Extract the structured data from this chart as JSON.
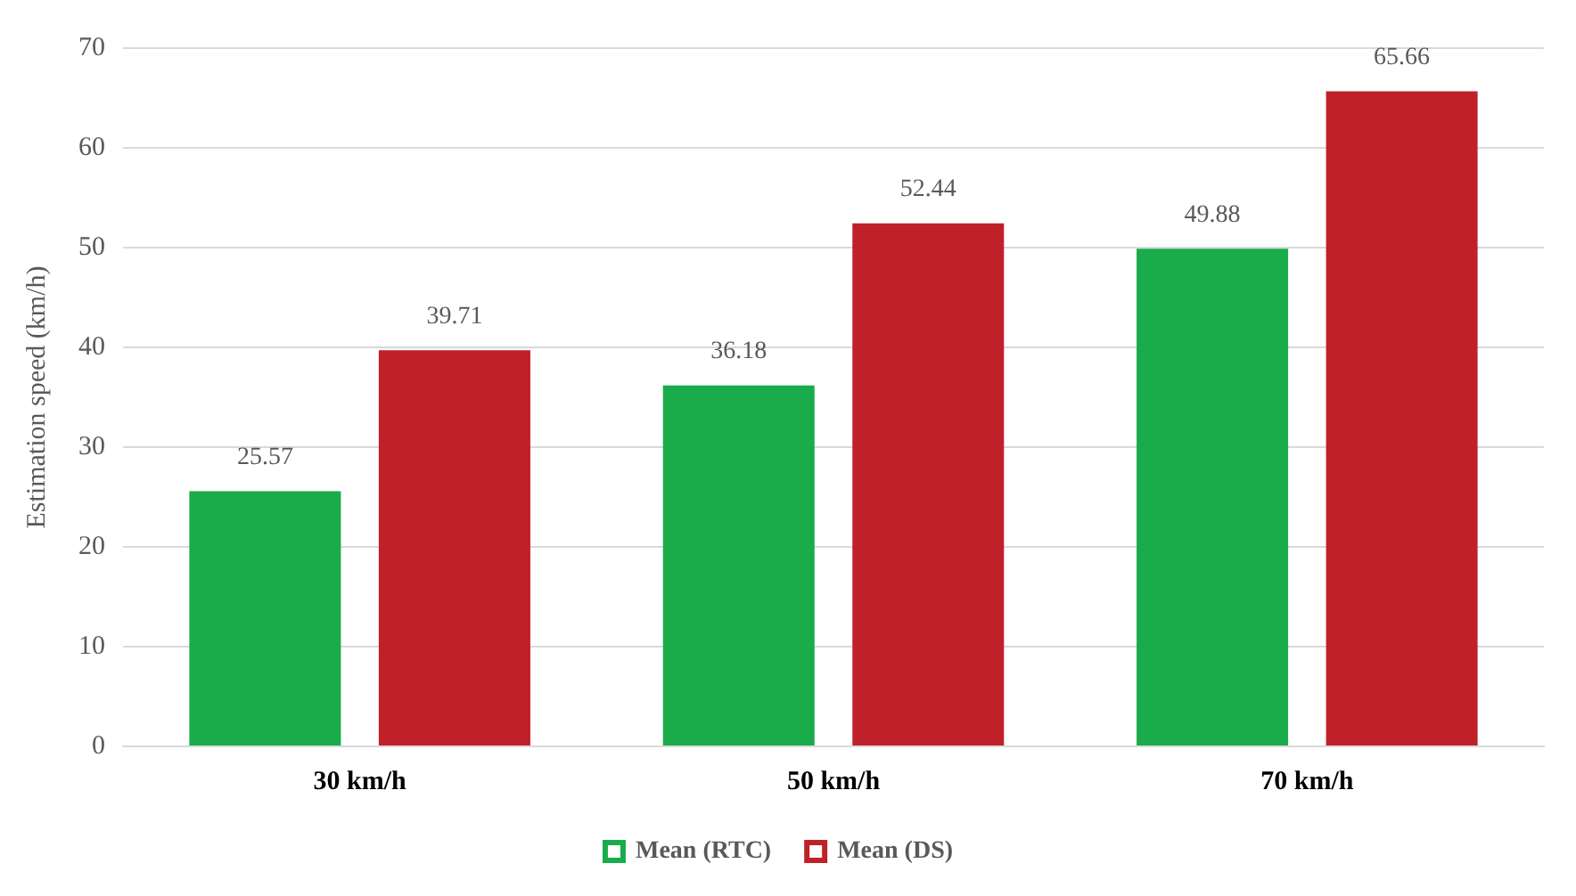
{
  "chart_data": {
    "type": "bar",
    "ylabel": "Estimation speed (km/h)",
    "categories": [
      "30 km/h",
      "50 km/h",
      "70 km/h"
    ],
    "series": [
      {
        "name": "Mean (RTC)",
        "color": "#1aab4b",
        "values": [
          25.57,
          36.18,
          49.88
        ]
      },
      {
        "name": "Mean (DS)",
        "color": "#c0202a",
        "values": [
          39.71,
          52.44,
          65.66
        ]
      }
    ],
    "ylim": [
      0,
      70
    ],
    "yticks": [
      0,
      10,
      20,
      30,
      40,
      50,
      60,
      70
    ],
    "grid": "y",
    "legend": "bottom",
    "data_labels": true
  }
}
